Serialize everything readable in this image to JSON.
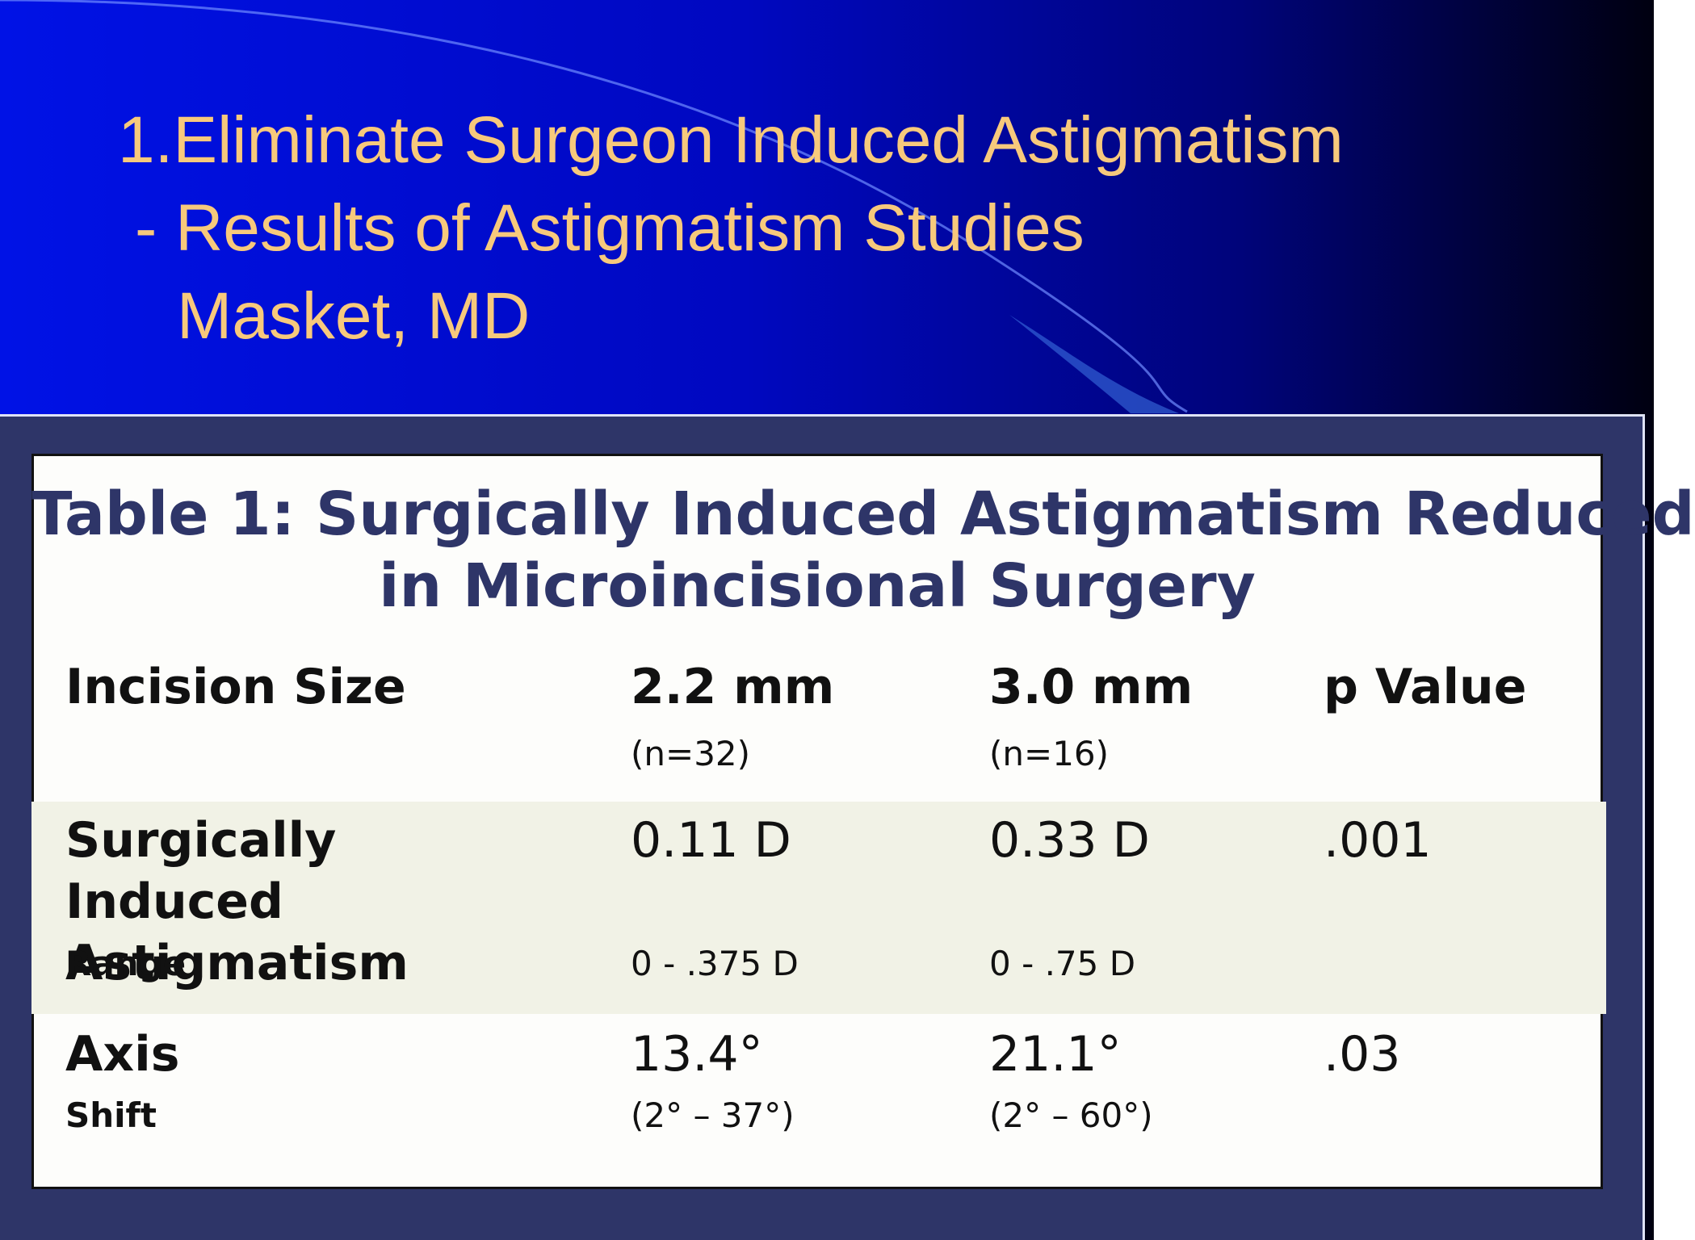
{
  "slide": {
    "title_lines": [
      "1.Eliminate Surgeon Induced Astigmatism",
      "- Results of Astigmatism Studies",
      "Masket, MD"
    ]
  },
  "table": {
    "title_lines": [
      "Table 1: Surgically Induced Astigmatism Reduced",
      "in Microincisional Surgery"
    ],
    "header": [
      {
        "main": "Incision Size"
      },
      {
        "main": "2.2 mm",
        "sub": "(n=32)"
      },
      {
        "main": "3.0 mm",
        "sub": "(n=16)"
      },
      {
        "main": "p Value"
      }
    ],
    "rows": [
      [
        {
          "main": "Surgically Induced Astigmatism",
          "sub": "Range"
        },
        {
          "main": "0.11 D",
          "sub": "0 - .375 D"
        },
        {
          "main": "0.33 D",
          "sub": "0 - .75 D"
        },
        {
          "main": ".001"
        }
      ],
      [
        {
          "main": "Axis",
          "sub": "Shift"
        },
        {
          "main": "13.4°",
          "sub": "(2° – 37°)"
        },
        {
          "main": "21.1°",
          "sub": "(2° – 60°)"
        },
        {
          "main": ".03"
        }
      ]
    ]
  }
}
